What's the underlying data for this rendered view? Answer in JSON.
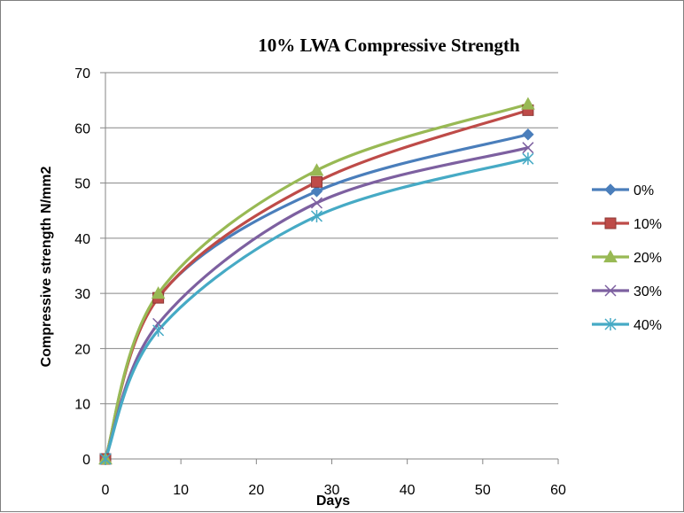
{
  "chart_data": {
    "type": "line",
    "title": "10% LWA Compressive Strength",
    "xlabel": "Days",
    "ylabel": "Compressive strength N/mm2",
    "xlim": [
      0,
      60
    ],
    "ylim": [
      0,
      70
    ],
    "xticks": [
      0,
      10,
      20,
      30,
      40,
      50,
      60
    ],
    "yticks": [
      0,
      10,
      20,
      30,
      40,
      50,
      60,
      70
    ],
    "grid": "horizontal",
    "legend_position": "right",
    "x": [
      0,
      7,
      28,
      56
    ],
    "series": [
      {
        "name": "0%",
        "values": [
          0,
          29.3,
          48.5,
          58.8
        ],
        "color": "#4a7ebb",
        "marker": "diamond"
      },
      {
        "name": "10%",
        "values": [
          0,
          29.2,
          50.2,
          63.2
        ],
        "color": "#be4b48",
        "marker": "square"
      },
      {
        "name": "20%",
        "values": [
          0,
          30.0,
          52.3,
          64.3
        ],
        "color": "#98b954",
        "marker": "triangle"
      },
      {
        "name": "30%",
        "values": [
          0,
          24.5,
          46.4,
          56.4
        ],
        "color": "#7d60a0",
        "marker": "x"
      },
      {
        "name": "40%",
        "values": [
          0,
          23.3,
          44.0,
          54.4
        ],
        "color": "#46aac5",
        "marker": "star"
      }
    ]
  }
}
